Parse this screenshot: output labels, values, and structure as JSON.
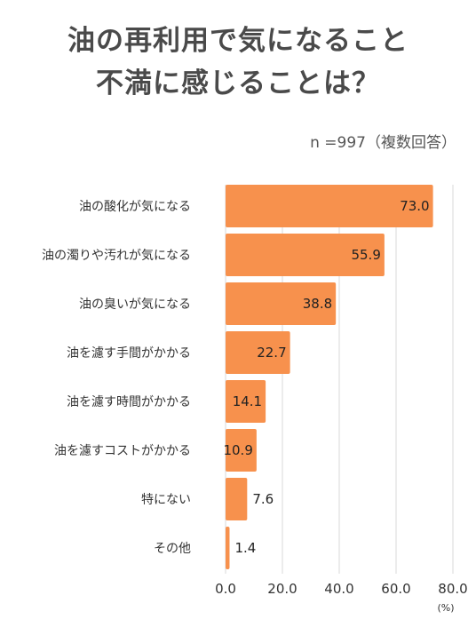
{
  "title": {
    "line1": "油の再利用で気になること",
    "line2": "不満に感じることは？"
  },
  "sample_note": "n =997（複数回答）",
  "colors": {
    "bar": "#F7914D",
    "grid": "#d8d8d8",
    "title": "#4a4a4a"
  },
  "chart_data": {
    "type": "bar",
    "orientation": "horizontal",
    "categories": [
      "油の酸化が気になる",
      "油の濁りや汚れが気になる",
      "油の臭いが気になる",
      "油を濾す手間がかかる",
      "油を濾す時間がかかる",
      "油を濾すコストがかかる",
      "特にない",
      "その他"
    ],
    "values": [
      73.0,
      55.9,
      38.8,
      22.7,
      14.1,
      10.9,
      7.6,
      1.4
    ],
    "value_labels": [
      "73.0",
      "55.9",
      "38.8",
      "22.7",
      "14.1",
      "10.9",
      "7.6",
      "1.4"
    ],
    "xlim": [
      0,
      80
    ],
    "xticks": [
      "0.0",
      "20.0",
      "40.0",
      "60.0",
      "80.0"
    ],
    "xunit": "(%)",
    "grid": true
  }
}
